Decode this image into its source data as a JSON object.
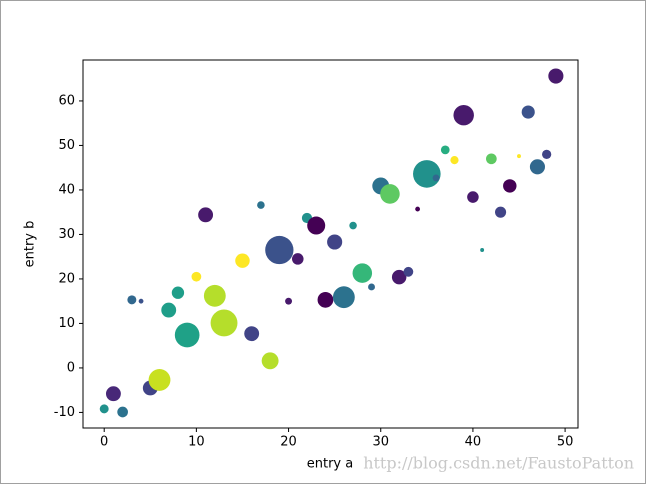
{
  "chart_data": {
    "type": "scatter",
    "xlabel": "entry a",
    "ylabel": "entry b",
    "x": [
      0,
      1,
      2,
      3,
      4,
      5,
      6,
      7,
      8,
      9,
      10,
      11,
      12,
      13,
      15,
      16,
      17,
      18,
      19,
      20,
      21,
      22,
      23,
      24,
      25,
      26,
      27,
      28,
      29,
      30,
      31,
      32,
      33,
      34,
      35,
      36,
      37,
      38,
      39,
      40,
      41,
      42,
      43,
      44,
      45,
      46,
      47,
      48,
      49
    ],
    "y": [
      -9.2,
      -5.8,
      -9.9,
      15.3,
      15.0,
      -4.5,
      -2.7,
      13.0,
      16.9,
      7.4,
      20.5,
      34.4,
      16.2,
      10.1,
      24.1,
      7.7,
      36.6,
      1.6,
      26.5,
      15.0,
      24.5,
      33.7,
      32.0,
      15.3,
      28.3,
      15.9,
      32.0,
      21.3,
      18.2,
      40.9,
      39.1,
      20.4,
      21.6,
      35.7,
      43.6,
      42.7,
      49.0,
      46.7,
      56.8,
      38.4,
      26.5,
      47.0,
      35.0,
      40.9,
      47.6,
      57.5,
      45.2,
      48.0,
      65.6
    ],
    "sizes": [
      42,
      116,
      60,
      42,
      12,
      116,
      250,
      116,
      80,
      320,
      50,
      116,
      250,
      380,
      110,
      116,
      30,
      150,
      420,
      25,
      70,
      55,
      170,
      130,
      120,
      250,
      30,
      200,
      25,
      150,
      200,
      110,
      50,
      12,
      400,
      25,
      40,
      35,
      220,
      70,
      8,
      60,
      65,
      95,
      8,
      90,
      120,
      45,
      120
    ],
    "colors": [
      "#21918c",
      "#482878",
      "#2c728e",
      "#31688e",
      "#3b528b",
      "#414487",
      "#c8e020",
      "#1f9e89",
      "#1f9e89",
      "#1fa187",
      "#fde725",
      "#481a6c",
      "#b5de2b",
      "#b5de2b",
      "#fde725",
      "#414487",
      "#2c728e",
      "#b5de2b",
      "#3b528b",
      "#481a6c",
      "#481a6c",
      "#21918c",
      "#440154",
      "#440154",
      "#414487",
      "#2c728e",
      "#21918c",
      "#35b779",
      "#31688e",
      "#2c728e",
      "#5ec962",
      "#481a6c",
      "#414487",
      "#440154",
      "#21918c",
      "#31688e",
      "#27ad81",
      "#fde725",
      "#481a6c",
      "#481a6c",
      "#21918c",
      "#5ec962",
      "#414487",
      "#440154",
      "#fde725",
      "#3b528b",
      "#31688e",
      "#414487",
      "#481a6c"
    ],
    "xlim": [
      -2.3,
      51.4
    ],
    "ylim": [
      -13.5,
      69.2
    ],
    "xticks": [
      0,
      10,
      20,
      30,
      40,
      50
    ],
    "yticks": [
      -10,
      0,
      10,
      20,
      30,
      40,
      50,
      60
    ]
  },
  "watermark": "http://blog.csdn.net/FaustoPatton"
}
